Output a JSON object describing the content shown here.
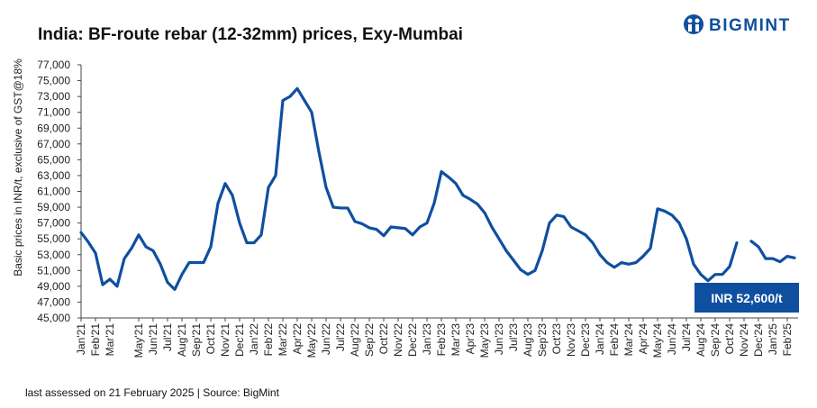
{
  "chart_data": {
    "type": "line",
    "title": "India: BF-route rebar (12-32mm) prices, Exy-Mumbai",
    "brand": "BIGMINT",
    "y_label": "Basic prices in INR/t, exclusive of GST@18%",
    "annotation": "INR 52,600/t",
    "footer": "last assessed on 21 February  2025 | Source: BigMint",
    "color": "#0f4fa0",
    "categories": [
      "Jan'21",
      null,
      "Feb'21",
      null,
      "Mar'21",
      null,
      null,
      null,
      "May'21",
      null,
      "Jun'21",
      null,
      "Jul'21",
      null,
      "Aug'21",
      null,
      "Sep'21",
      null,
      "Oct'21",
      null,
      "Nov'21",
      null,
      "Dec'21",
      null,
      "Jan'22",
      null,
      "Feb'22",
      null,
      "Mar'22",
      null,
      "Apr'22",
      null,
      "May'22",
      null,
      "Jun'22",
      null,
      "Jul'22",
      null,
      "Aug'22",
      null,
      "Sep'22",
      null,
      "Oct'22",
      null,
      "Nov'22",
      null,
      "Dec'22",
      null,
      "Jan'23",
      null,
      "Feb'23",
      null,
      "Mar'23",
      null,
      "Apr'23",
      null,
      "May'23",
      null,
      "Jun'23",
      null,
      "Jul'23",
      null,
      "Aug'23",
      null,
      "Sep'23",
      null,
      "Oct'23",
      null,
      "Nov'23",
      null,
      "Dec'23",
      null,
      "Jan'24",
      null,
      "Feb'24",
      null,
      "Mar'24",
      null,
      "Apr'24",
      null,
      "May'24",
      null,
      "Jun'24",
      null,
      "Jul'24",
      null,
      "Aug'24",
      null,
      "Sep'24",
      null,
      "Oct'24",
      null,
      "Nov'24",
      null,
      "Dec'24",
      null,
      "Jan'25",
      null,
      "Feb'25",
      null
    ],
    "values": [
      55800,
      54600,
      53200,
      49200,
      49900,
      49000,
      52500,
      53800,
      55500,
      54000,
      53500,
      51800,
      49500,
      48600,
      50500,
      52000,
      52000,
      52000,
      54000,
      59500,
      62000,
      60500,
      57000,
      54500,
      54500,
      55500,
      61500,
      63000,
      72500,
      73000,
      74000,
      72500,
      71000,
      66000,
      61500,
      59000,
      58900,
      58900,
      57200,
      56900,
      56400,
      56200,
      55400,
      56500,
      56400,
      56300,
      55500,
      56500,
      57000,
      59500,
      63500,
      62800,
      62000,
      60500,
      60000,
      59400,
      58300,
      56500,
      55000,
      53500,
      52300,
      51100,
      50500,
      51000,
      53500,
      57000,
      58000,
      57800,
      56500,
      56000,
      55500,
      54500,
      53000,
      52000,
      51400,
      52000,
      51800,
      52000,
      52800,
      53800,
      58800,
      58500,
      58000,
      57000,
      55000,
      51800,
      50500,
      49700,
      50500,
      50500,
      51500,
      54500,
      null,
      54700,
      54000,
      52500,
      52500,
      52100,
      52800,
      52600
    ],
    "ylim": [
      45000,
      77000
    ],
    "yticks": [
      {
        "value": 45000,
        "label": "45,000"
      },
      {
        "value": 47000,
        "label": "47,000"
      },
      {
        "value": 49000,
        "label": "49,000"
      },
      {
        "value": 51000,
        "label": "51,000"
      },
      {
        "value": 53000,
        "label": "53,000"
      },
      {
        "value": 55000,
        "label": "55,000"
      },
      {
        "value": 57000,
        "label": "57,000"
      },
      {
        "value": 59000,
        "label": "59,000"
      },
      {
        "value": 61000,
        "label": "61,000"
      },
      {
        "value": 63000,
        "label": "63,000"
      },
      {
        "value": 65000,
        "label": "65,000"
      },
      {
        "value": 67000,
        "label": "67,000"
      },
      {
        "value": 69000,
        "label": "69,000"
      },
      {
        "value": 71000,
        "label": "71,000"
      },
      {
        "value": 73000,
        "label": "73,000"
      },
      {
        "value": 75000,
        "label": "75,000"
      },
      {
        "value": 77000,
        "label": "77,000"
      }
    ],
    "grid": false
  }
}
